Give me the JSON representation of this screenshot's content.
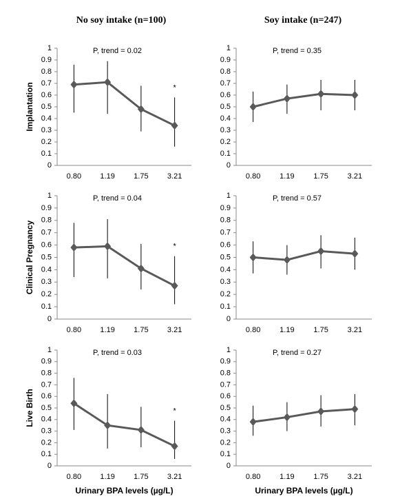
{
  "column_titles": [
    "No soy intake (n=100)",
    "Soy intake (n=247)"
  ],
  "chart_data": [
    {
      "type": "line",
      "ylabel": "Implantation",
      "annotation": "P, trend = 0.02",
      "significance_mark": "*",
      "color": "#595959",
      "categories": [
        "0.80",
        "1.19",
        "1.75",
        "3.21"
      ],
      "values": [
        0.69,
        0.71,
        0.48,
        0.34
      ],
      "lower": [
        0.45,
        0.44,
        0.29,
        0.16
      ],
      "upper": [
        0.86,
        0.89,
        0.68,
        0.58
      ],
      "ylim": [
        0,
        1
      ],
      "yticks": [
        0,
        0.1,
        0.2,
        0.3,
        0.4,
        0.5,
        0.6,
        0.7,
        0.8,
        0.9,
        1
      ]
    },
    {
      "type": "line",
      "annotation": "P, trend = 0.35",
      "color": "#595959",
      "categories": [
        "0.80",
        "1.19",
        "1.75",
        "3.21"
      ],
      "values": [
        0.5,
        0.57,
        0.61,
        0.6
      ],
      "lower": [
        0.37,
        0.44,
        0.47,
        0.47
      ],
      "upper": [
        0.63,
        0.69,
        0.73,
        0.73
      ],
      "ylim": [
        0,
        1
      ],
      "yticks": [
        0,
        0.1,
        0.2,
        0.3,
        0.4,
        0.5,
        0.6,
        0.7,
        0.8,
        0.9,
        1
      ]
    },
    {
      "type": "line",
      "ylabel": "Clinical  Pregnancy",
      "annotation": "P, trend = 0.04",
      "significance_mark": "*",
      "color": "#595959",
      "categories": [
        "0.80",
        "1.19",
        "1.75",
        "3.21"
      ],
      "values": [
        0.58,
        0.59,
        0.41,
        0.27
      ],
      "lower": [
        0.34,
        0.33,
        0.24,
        0.12
      ],
      "upper": [
        0.78,
        0.81,
        0.61,
        0.51
      ],
      "ylim": [
        0,
        1
      ],
      "yticks": [
        0,
        0.1,
        0.2,
        0.3,
        0.4,
        0.5,
        0.6,
        0.7,
        0.8,
        0.9,
        1
      ]
    },
    {
      "type": "line",
      "annotation": "P, trend = 0.57",
      "color": "#595959",
      "categories": [
        "0.80",
        "1.19",
        "1.75",
        "3.21"
      ],
      "values": [
        0.5,
        0.48,
        0.55,
        0.53
      ],
      "lower": [
        0.37,
        0.36,
        0.41,
        0.4
      ],
      "upper": [
        0.63,
        0.6,
        0.68,
        0.66
      ],
      "ylim": [
        0,
        1
      ],
      "yticks": [
        0,
        0.1,
        0.2,
        0.3,
        0.4,
        0.5,
        0.6,
        0.7,
        0.8,
        0.9,
        1
      ]
    },
    {
      "type": "line",
      "ylabel": "Live Birth",
      "xlabel": "Urinary BPA levels (µg/L)",
      "annotation": "P, trend = 0.03",
      "significance_mark": "*",
      "color": "#595959",
      "categories": [
        "0.80",
        "1.19",
        "1.75",
        "3.21"
      ],
      "values": [
        0.54,
        0.35,
        0.31,
        0.17
      ],
      "lower": [
        0.31,
        0.15,
        0.16,
        0.06
      ],
      "upper": [
        0.76,
        0.62,
        0.51,
        0.39
      ],
      "ylim": [
        0,
        1
      ],
      "yticks": [
        0,
        0.1,
        0.2,
        0.3,
        0.4,
        0.5,
        0.6,
        0.7,
        0.8,
        0.9,
        1
      ]
    },
    {
      "type": "line",
      "xlabel": "Urinary BPA levels (µg/L)",
      "annotation": "P, trend = 0.27",
      "color": "#595959",
      "categories": [
        "0.80",
        "1.19",
        "1.75",
        "3.21"
      ],
      "values": [
        0.38,
        0.42,
        0.47,
        0.49
      ],
      "lower": [
        0.26,
        0.3,
        0.34,
        0.35
      ],
      "upper": [
        0.52,
        0.55,
        0.61,
        0.62
      ],
      "ylim": [
        0,
        1
      ],
      "yticks": [
        0,
        0.1,
        0.2,
        0.3,
        0.4,
        0.5,
        0.6,
        0.7,
        0.8,
        0.9,
        1
      ]
    }
  ]
}
